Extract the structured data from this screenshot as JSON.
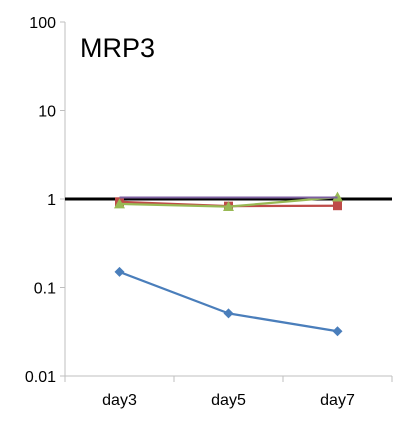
{
  "chart_data": {
    "type": "line",
    "title": "MRP3",
    "xlabel": "",
    "ylabel": "",
    "y_scale": "log",
    "ylim": [
      0.01,
      100
    ],
    "y_ticks": [
      {
        "value": 100,
        "label": "100"
      },
      {
        "value": 10,
        "label": "10"
      },
      {
        "value": 1,
        "label": "1"
      },
      {
        "value": 0.1,
        "label": "0.1"
      },
      {
        "value": 0.01,
        "label": "0.01"
      }
    ],
    "categories": [
      "day3",
      "day5",
      "day7"
    ],
    "grid": false,
    "legend": "none",
    "reference_lines": [
      {
        "value": 1,
        "color": "#000000"
      }
    ],
    "series": [
      {
        "values": [
          0.15,
          0.051,
          0.032
        ],
        "color": "#4a7ebb",
        "marker": "diamond"
      },
      {
        "values": [
          0.93,
          0.83,
          0.84
        ],
        "color": "#be4b48",
        "marker": "square"
      },
      {
        "values": [
          0.88,
          0.82,
          1.05
        ],
        "color": "#98b954",
        "marker": "triangle"
      },
      {
        "values": [
          1.04,
          1.04,
          1.04
        ],
        "color": "#7d60a0",
        "marker": "none"
      }
    ],
    "axis_color": "#bfbfbf"
  }
}
